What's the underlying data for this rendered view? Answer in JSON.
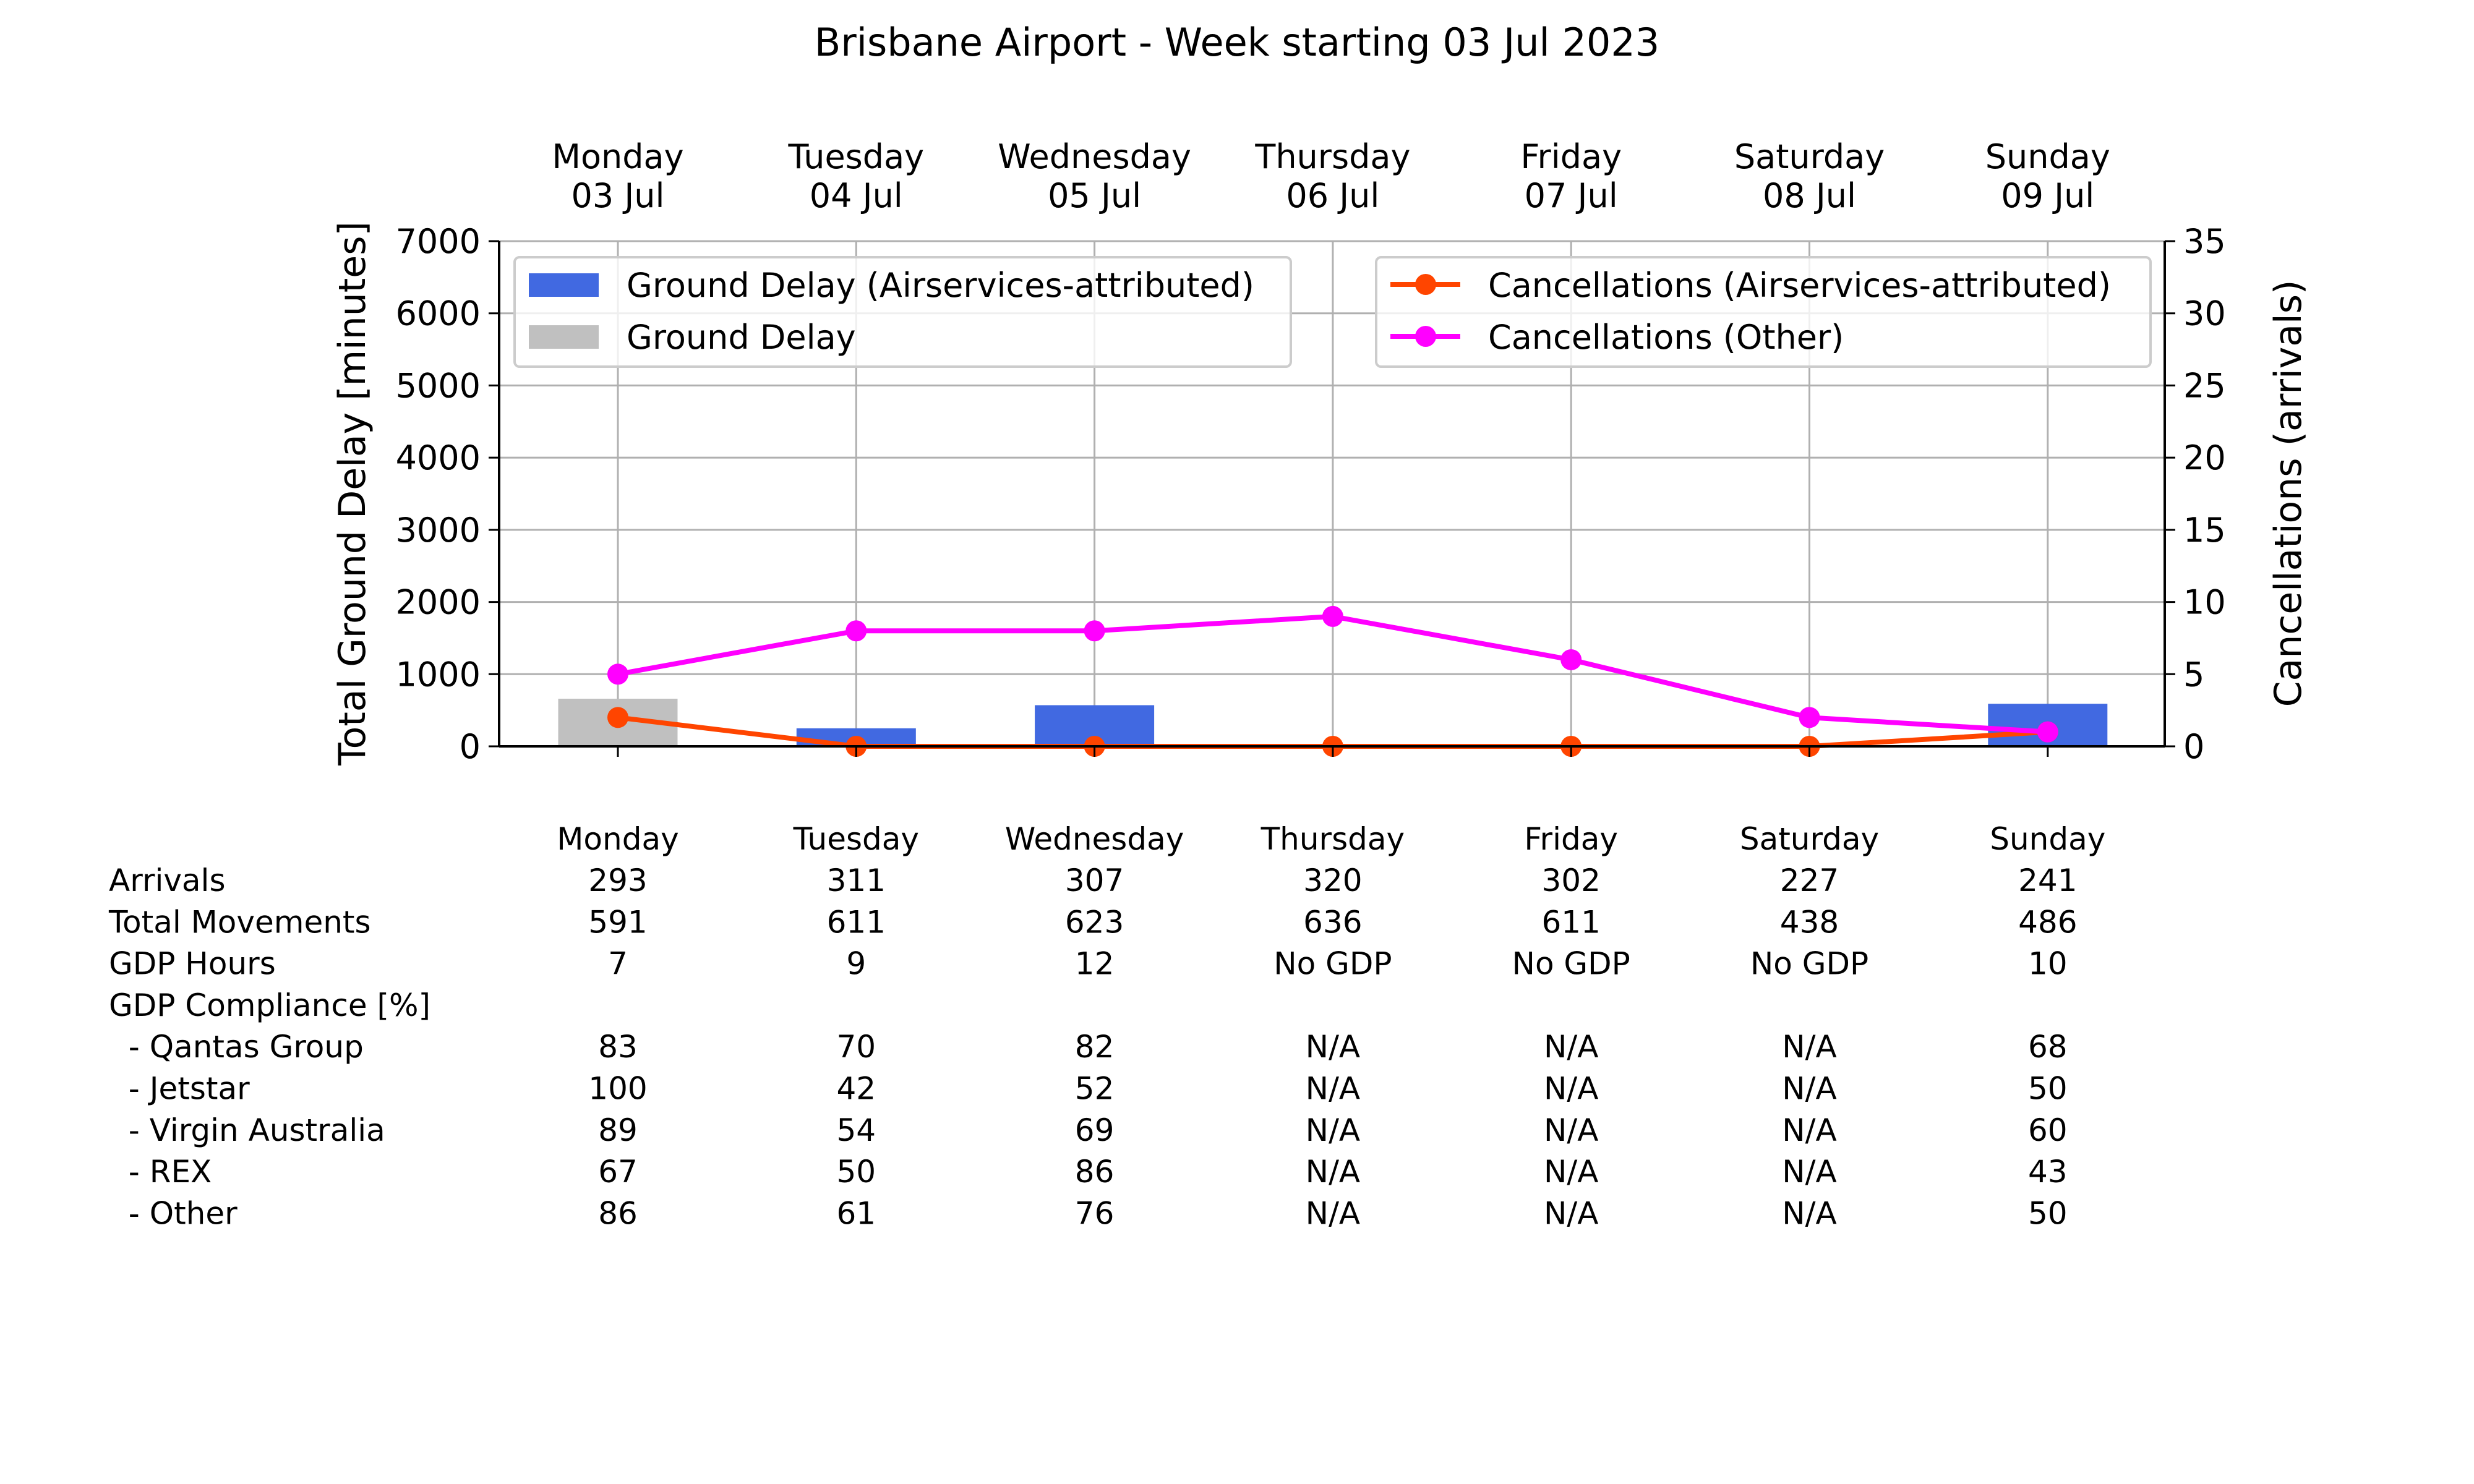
{
  "chart_data": {
    "type": "bar",
    "title": "Brisbane Airport - Week starting 03 Jul 2023",
    "categories": [
      {
        "day": "Monday",
        "date": "03 Jul"
      },
      {
        "day": "Tuesday",
        "date": "04 Jul"
      },
      {
        "day": "Wednesday",
        "date": "05 Jul"
      },
      {
        "day": "Thursday",
        "date": "06 Jul"
      },
      {
        "day": "Friday",
        "date": "07 Jul"
      },
      {
        "day": "Saturday",
        "date": "08 Jul"
      },
      {
        "day": "Sunday",
        "date": "09 Jul"
      }
    ],
    "ylabel": "Total Ground Delay [minutes]",
    "ylim": [
      0,
      7000
    ],
    "yticks": [
      0,
      1000,
      2000,
      3000,
      4000,
      5000,
      6000,
      7000
    ],
    "y2label": "Cancellations (arrivals)",
    "y2lim": [
      0,
      35
    ],
    "y2ticks": [
      0,
      5,
      10,
      15,
      20,
      25,
      30,
      35
    ],
    "grid": true,
    "bar_series": [
      {
        "name": "Ground Delay (Airservices-attributed)",
        "color": "#4169e1",
        "values": [
          0,
          250,
          570,
          0,
          0,
          0,
          590
        ]
      },
      {
        "name": "Ground Delay",
        "color": "#c0c0c0",
        "values": [
          660,
          0,
          0,
          0,
          0,
          0,
          0
        ]
      }
    ],
    "line_series": [
      {
        "name": "Cancellations (Airservices-attributed)",
        "color": "#ff4500",
        "axis": "right",
        "values": [
          2,
          0,
          0,
          0,
          0,
          0,
          1
        ]
      },
      {
        "name": "Cancellations (Other)",
        "color": "#ff00ff",
        "axis": "right",
        "values": [
          5,
          8,
          8,
          9,
          6,
          2,
          1
        ]
      }
    ],
    "legend_left_position": "upper-left",
    "legend_right_position": "upper-right"
  },
  "table": {
    "header": [
      "Monday",
      "Tuesday",
      "Wednesday",
      "Thursday",
      "Friday",
      "Saturday",
      "Sunday"
    ],
    "rows": [
      {
        "label": "Arrivals",
        "values": [
          "293",
          "311",
          "307",
          "320",
          "302",
          "227",
          "241"
        ]
      },
      {
        "label": "Total Movements",
        "values": [
          "591",
          "611",
          "623",
          "636",
          "611",
          "438",
          "486"
        ]
      },
      {
        "label": "GDP Hours",
        "values": [
          "7",
          "9",
          "12",
          "No GDP",
          "No GDP",
          "No GDP",
          "10"
        ]
      },
      {
        "label": "GDP Compliance [%]",
        "values": [
          "",
          "",
          "",
          "",
          "",
          "",
          ""
        ]
      },
      {
        "label": "  - Qantas Group",
        "values": [
          "83",
          "70",
          "82",
          "N/A",
          "N/A",
          "N/A",
          "68"
        ]
      },
      {
        "label": "  - Jetstar",
        "values": [
          "100",
          "42",
          "52",
          "N/A",
          "N/A",
          "N/A",
          "50"
        ]
      },
      {
        "label": "  - Virgin Australia",
        "values": [
          "89",
          "54",
          "69",
          "N/A",
          "N/A",
          "N/A",
          "60"
        ]
      },
      {
        "label": "  - REX",
        "values": [
          "67",
          "50",
          "86",
          "N/A",
          "N/A",
          "N/A",
          "43"
        ]
      },
      {
        "label": "  - Other",
        "values": [
          "86",
          "61",
          "76",
          "N/A",
          "N/A",
          "N/A",
          "50"
        ]
      }
    ]
  }
}
